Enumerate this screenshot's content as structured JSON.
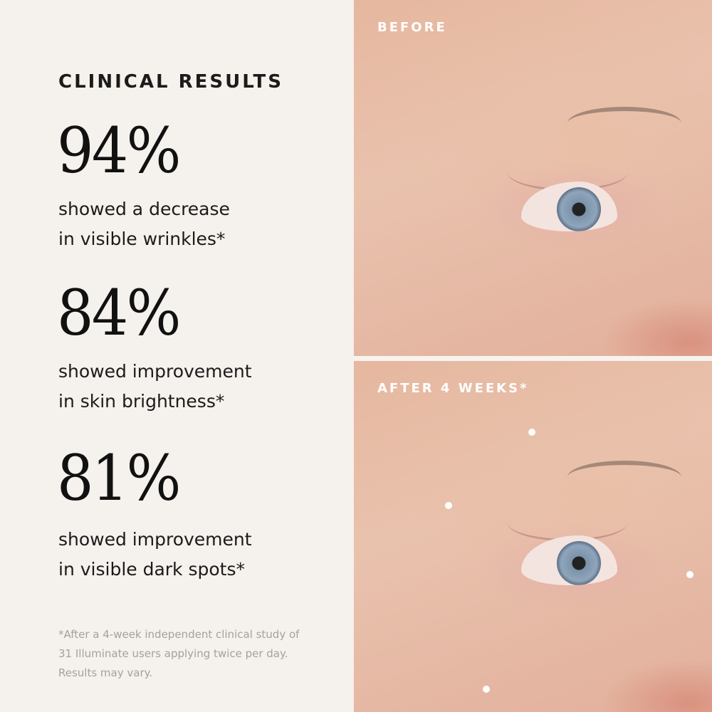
{
  "heading": "CLINICAL RESULTS",
  "stats": [
    {
      "value": "94%",
      "line1": "showed a decrease",
      "line2": "in visible wrinkles*"
    },
    {
      "value": "84%",
      "line1": "showed improvement",
      "line2": "in skin brightness*"
    },
    {
      "value": "81%",
      "line1": "showed improvement",
      "line2": "in visible dark spots*"
    }
  ],
  "footnote": {
    "line1": "*After a 4-week independent clinical study of",
    "line2": "31 Illuminate users applying twice per day.",
    "line3": "Results may vary."
  },
  "photos": {
    "before_label": "BEFORE",
    "after_label": "AFTER 4 WEEKS*"
  },
  "colors": {
    "background": "#f5f1ec",
    "text": "#1b1b1b",
    "footnote": "#a6a19c"
  }
}
